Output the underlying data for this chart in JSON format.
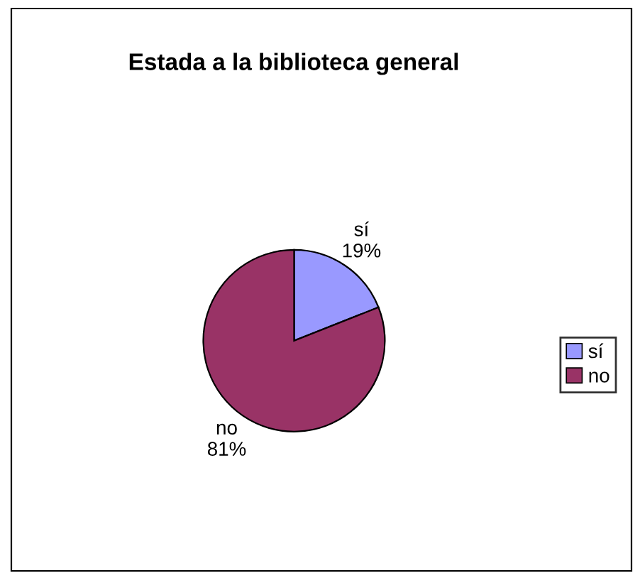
{
  "chart_data": {
    "type": "pie",
    "title": "Estada a la biblioteca general",
    "categories": [
      "sí",
      "no"
    ],
    "values": [
      19,
      81
    ],
    "value_labels": [
      "19%",
      "81%"
    ],
    "colors": [
      "#9999ff",
      "#993366"
    ],
    "legend": "right"
  }
}
